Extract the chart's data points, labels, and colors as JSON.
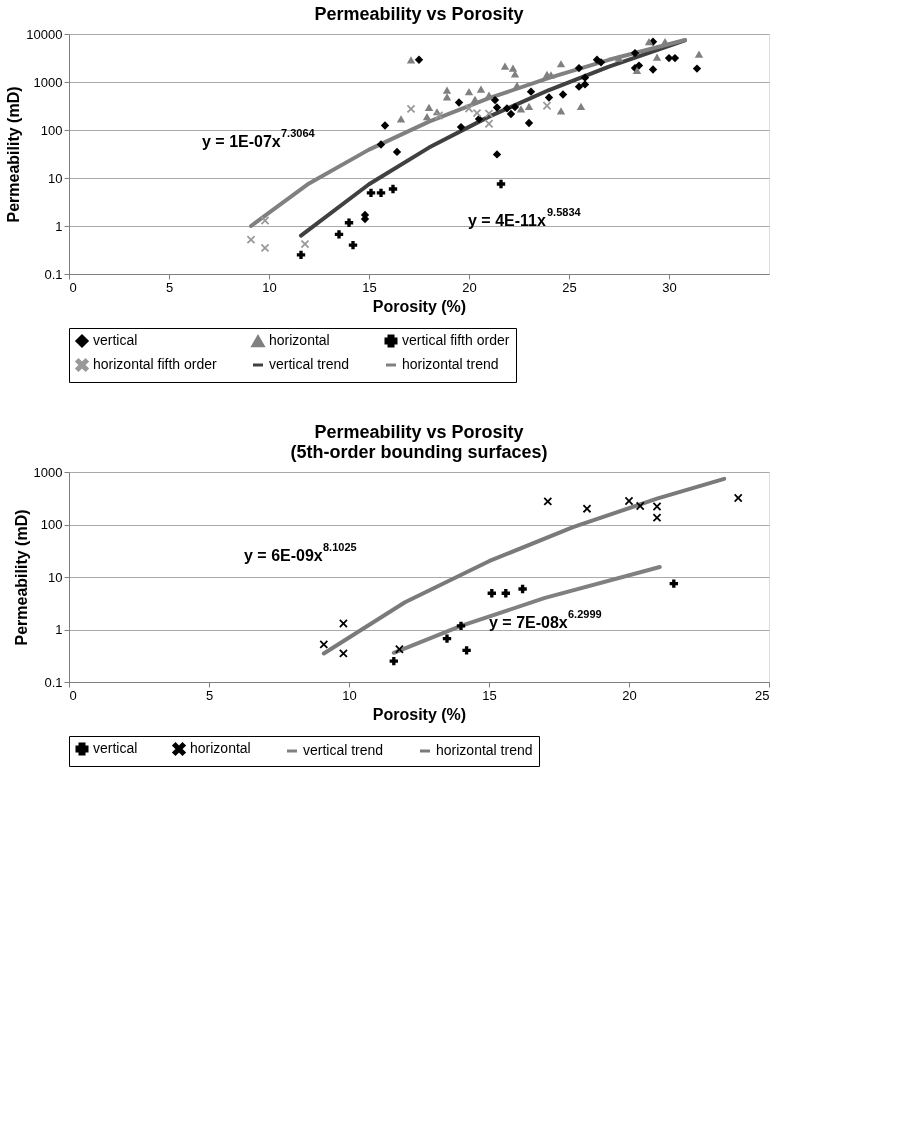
{
  "chart_data": [
    {
      "type": "scatter",
      "title": "Permeability vs Porosity",
      "xlabel": "Porosity (%)",
      "ylabel": "Permeability (mD)",
      "xlim": [
        0,
        35
      ],
      "xticks": [
        0,
        5,
        10,
        15,
        20,
        25,
        30
      ],
      "ylim": [
        0.1,
        10000
      ],
      "yticks": [
        0.1,
        1,
        10,
        100,
        1000,
        10000
      ],
      "log": "y",
      "grid": "y",
      "legend": "bottom",
      "line_style": "solid",
      "series": [
        {
          "name": "vertical",
          "marker": "diamond",
          "color": "#000000",
          "x": [
            17.5,
            15.8,
            15.6,
            16.4,
            14.8,
            14.8,
            19.5,
            19.6,
            20.5,
            21.3,
            21.4,
            21.4,
            21.9,
            22.1,
            22.3,
            23.0,
            23.1,
            24.0,
            24.7,
            25.5,
            25.5,
            25.8,
            25.8,
            26.4,
            26.6,
            28.3,
            28.3,
            28.5,
            29.2,
            29.2,
            30.0,
            30.3,
            31.4
          ],
          "values": [
            2900,
            124,
            50,
            35,
            1.7,
            1.4,
            375,
            115,
            170,
            420,
            295,
            31,
            283,
            215,
            300,
            140,
            630,
            475,
            550,
            1950,
            800,
            890,
            1230,
            2900,
            2570,
            4000,
            1950,
            2200,
            6900,
            1820,
            3150,
            3150,
            1900
          ]
        },
        {
          "name": "horizontal",
          "marker": "triangle",
          "color": "#808080",
          "x": [
            17.1,
            16.6,
            17.9,
            18.0,
            18.4,
            18.9,
            18.9,
            20.0,
            20.6,
            21.0,
            20.3,
            21.8,
            22.2,
            22.3,
            22.4,
            22.6,
            23.0,
            23.9,
            24.1,
            24.6,
            24.6,
            25.6,
            27.5,
            28.4,
            29.0,
            29.8,
            29.4,
            31.5
          ],
          "values": [
            2900,
            170,
            190,
            295,
            240,
            680,
            490,
            630,
            710,
            535,
            435,
            2130,
            1950,
            1480,
            850,
            275,
            310,
            1440,
            1400,
            2400,
            250,
            310,
            3150,
            1740,
            6900,
            6900,
            3300,
            3800
          ]
        },
        {
          "name": "vertical fifth order",
          "marker": "cross",
          "color": "#000000",
          "x": [
            11.6,
            13.5,
            14.0,
            14.2,
            15.1,
            15.6,
            16.2,
            21.6
          ],
          "values": [
            0.25,
            0.67,
            1.17,
            0.4,
            4.9,
            4.9,
            5.9,
            7.5
          ]
        },
        {
          "name": "horizontal fifth order",
          "marker": "x",
          "color": "#999999",
          "x": [
            9.1,
            9.8,
            9.8,
            11.8,
            17.1,
            18.5,
            20.0,
            20.4,
            21.0,
            21.0,
            23.9
          ],
          "values": [
            0.52,
            1.3,
            0.35,
            0.42,
            275,
            200,
            280,
            225,
            220,
            135,
            320
          ]
        },
        {
          "name": "vertical trend",
          "type": "line",
          "marker": "none",
          "color": "#404040",
          "x": [
            11.6,
            15,
            18,
            21,
            24,
            27,
            30.8
          ],
          "values": [
            0.63,
            7.4,
            43,
            190,
            680,
            2100,
            7400
          ]
        },
        {
          "name": "horizontal trend",
          "type": "line",
          "marker": "none",
          "color": "#808080",
          "x": [
            9.1,
            12,
            15,
            18,
            21,
            24,
            27,
            30.8
          ],
          "values": [
            1.0,
            7.7,
            39,
            149,
            460,
            1220,
            2900,
            7500
          ]
        }
      ],
      "annotations": [
        "y = 1E-07x$^{7.3064}$",
        "y = 4E-11x$^{9.5834}$"
      ]
    },
    {
      "type": "scatter",
      "title": "Permeability vs Porosity\n(5th-order bounding surfaces)",
      "xlabel": "Porosity (%)",
      "ylabel": "Permeability (mD)",
      "xlim": [
        0,
        25
      ],
      "xticks": [
        0,
        5,
        10,
        15,
        20,
        25
      ],
      "ylim": [
        0.1,
        1000
      ],
      "yticks": [
        0.1,
        1,
        10,
        100,
        1000
      ],
      "log": "y",
      "grid": "y",
      "legend": "bottom",
      "line_style": "solid",
      "series": [
        {
          "name": "vertical",
          "marker": "cross",
          "color": "#000000",
          "x": [
            11.6,
            13.5,
            14.0,
            14.2,
            15.1,
            15.6,
            16.2,
            21.6
          ],
          "values": [
            0.25,
            0.67,
            1.17,
            0.4,
            4.9,
            4.9,
            5.9,
            7.5
          ]
        },
        {
          "name": "horizontal",
          "marker": "x",
          "color": "#000000",
          "x": [
            9.1,
            9.8,
            9.8,
            11.8,
            17.1,
            18.5,
            20.0,
            20.4,
            21.0,
            21.0,
            23.9
          ],
          "values": [
            0.52,
            1.3,
            0.35,
            0.42,
            275,
            200,
            280,
            225,
            220,
            135,
            320
          ]
        },
        {
          "name": "vertical trend",
          "type": "line",
          "marker": "none",
          "color": "#808080",
          "x": [
            11.6,
            14,
            17,
            21.1
          ],
          "values": [
            0.36,
            1.17,
            4.0,
            15.5
          ]
        },
        {
          "name": "horizontal trend",
          "type": "line",
          "marker": "none",
          "color": "#7a7a7a",
          "x": [
            9.1,
            12,
            15,
            18,
            21,
            23.4
          ],
          "values": [
            0.35,
            3.3,
            20,
            89,
            310,
            740
          ]
        }
      ],
      "annotations": [
        "y = 6E-09x$^{8.1025}$",
        "y = 7E-08x$^{6.2999}$"
      ]
    }
  ]
}
